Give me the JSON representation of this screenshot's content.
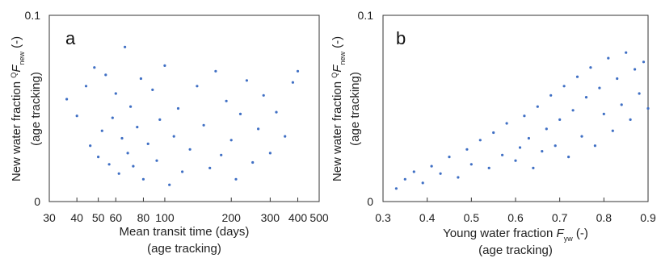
{
  "charts": [
    {
      "panel_label": "a",
      "ylabel": [
        "New water fraction ",
        "Q",
        "F",
        "new",
        " (-)"
      ],
      "ylabel2": "(age tracking)",
      "xlabel": "Mean transit time (days)",
      "xlabel2": "(age tracking)",
      "y_ticks": [
        "0",
        "0.1"
      ],
      "x_ticks": [
        "30",
        "40",
        "50",
        "60",
        "80",
        "100",
        "200",
        "300",
        "400",
        "500"
      ]
    },
    {
      "panel_label": "b",
      "ylabel": [
        "New water fraction ",
        "Q",
        "F",
        "new",
        " (-)"
      ],
      "ylabel2": "(age tracking)",
      "xlabel": [
        "Young water fraction ",
        "F",
        "yw",
        " (-)"
      ],
      "xlabel2": "(age tracking)",
      "y_ticks": [
        "0",
        "0.1"
      ],
      "x_ticks": [
        "0.3",
        "0.4",
        "0.5",
        "0.6",
        "0.7",
        "0.8",
        "0.9"
      ]
    }
  ],
  "chart_data": [
    {
      "type": "scatter",
      "x_scale": "log",
      "xlim": [
        30,
        500
      ],
      "ylim": [
        0,
        0.1
      ],
      "color": "#3f6fc4",
      "x": [
        36,
        40,
        44,
        46,
        48,
        50,
        52,
        54,
        56,
        58,
        60,
        62,
        64,
        66,
        68,
        70,
        72,
        75,
        78,
        80,
        84,
        88,
        92,
        95,
        100,
        105,
        110,
        115,
        120,
        130,
        140,
        150,
        160,
        170,
        180,
        190,
        200,
        210,
        220,
        235,
        250,
        265,
        280,
        300,
        320,
        350,
        380,
        400
      ],
      "y": [
        0.055,
        0.046,
        0.062,
        0.03,
        0.072,
        0.024,
        0.038,
        0.068,
        0.02,
        0.045,
        0.058,
        0.015,
        0.034,
        0.083,
        0.026,
        0.051,
        0.019,
        0.04,
        0.066,
        0.012,
        0.031,
        0.06,
        0.022,
        0.044,
        0.073,
        0.009,
        0.035,
        0.05,
        0.016,
        0.028,
        0.062,
        0.041,
        0.018,
        0.07,
        0.025,
        0.054,
        0.033,
        0.012,
        0.047,
        0.065,
        0.021,
        0.039,
        0.057,
        0.026,
        0.048,
        0.035,
        0.064,
        0.07
      ],
      "xlabel": "Mean transit time (days)",
      "ylabel": "New water fraction QFnew (-)"
    },
    {
      "type": "scatter",
      "xlim": [
        0.3,
        0.9
      ],
      "ylim": [
        0,
        0.1
      ],
      "color": "#3f6fc4",
      "x": [
        0.33,
        0.35,
        0.37,
        0.39,
        0.41,
        0.43,
        0.45,
        0.47,
        0.49,
        0.5,
        0.52,
        0.54,
        0.55,
        0.57,
        0.58,
        0.6,
        0.61,
        0.62,
        0.63,
        0.64,
        0.65,
        0.66,
        0.67,
        0.68,
        0.69,
        0.7,
        0.71,
        0.72,
        0.73,
        0.74,
        0.75,
        0.76,
        0.77,
        0.78,
        0.79,
        0.8,
        0.81,
        0.82,
        0.83,
        0.84,
        0.85,
        0.86,
        0.87,
        0.88,
        0.89,
        0.9
      ],
      "y": [
        0.007,
        0.012,
        0.016,
        0.01,
        0.019,
        0.015,
        0.024,
        0.013,
        0.028,
        0.02,
        0.033,
        0.018,
        0.037,
        0.025,
        0.042,
        0.022,
        0.029,
        0.046,
        0.034,
        0.018,
        0.051,
        0.027,
        0.039,
        0.057,
        0.03,
        0.044,
        0.062,
        0.024,
        0.049,
        0.067,
        0.035,
        0.056,
        0.072,
        0.03,
        0.061,
        0.047,
        0.077,
        0.038,
        0.066,
        0.052,
        0.08,
        0.044,
        0.071,
        0.058,
        0.075,
        0.05
      ],
      "xlabel": "Young water fraction Fyw (-)",
      "ylabel": "New water fraction QFnew (-)"
    }
  ]
}
